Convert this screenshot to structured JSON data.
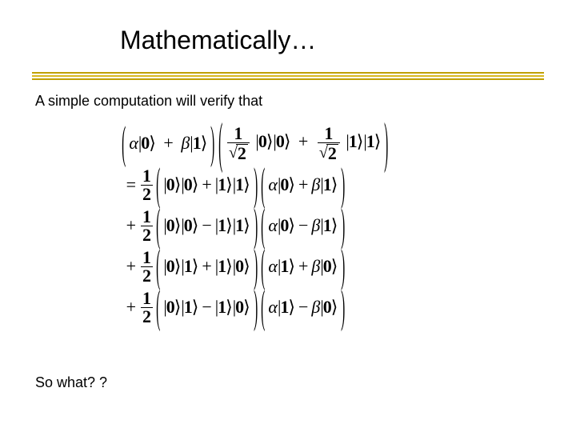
{
  "title": "Mathematically…",
  "intro_text": "A simple computation will verify that",
  "so_what": "So what? ?",
  "rule_colors": [
    "#c0a000",
    "#d8b820",
    "#c0a000"
  ],
  "symbols": {
    "alpha": "α",
    "beta": "β",
    "plus": "+",
    "minus": "−",
    "eq": "=",
    "zero": "0",
    "one": "1",
    "two": "2",
    "half_num": "1",
    "half_den": "2",
    "sqrt2": "2"
  },
  "typography": {
    "title_fontsize_pt": 24,
    "body_fontsize_pt": 14,
    "math_fontsize_pt": 16,
    "math_font": "Times New Roman",
    "body_font": "Arial",
    "text_color": "#000000",
    "bg_color": "#ffffff"
  },
  "math": {
    "line1": {
      "factor1": {
        "terms": [
          {
            "coef": "α",
            "ket": "0"
          },
          {
            "op": "+",
            "coef": "β",
            "ket": "1"
          }
        ]
      },
      "factor2": {
        "terms": [
          {
            "frac_num": "1",
            "frac_den_sqrt": "2",
            "ket": "0",
            "ket2": "0"
          },
          {
            "op": "+",
            "frac_num": "1",
            "frac_den_sqrt": "2",
            "ket": "1",
            "ket2": "1"
          }
        ]
      }
    },
    "rows": [
      {
        "lead": "=",
        "half": true,
        "bell": [
          {
            "k1": "0",
            "k2": "0"
          },
          {
            "op": "+",
            "k1": "1",
            "k2": "1"
          }
        ],
        "coef": [
          {
            "c": "α",
            "k": "0"
          },
          {
            "op": "+",
            "c": "β",
            "k": "1"
          }
        ]
      },
      {
        "lead": "+",
        "half": true,
        "bell": [
          {
            "k1": "0",
            "k2": "0"
          },
          {
            "op": "−",
            "k1": "1",
            "k2": "1"
          }
        ],
        "coef": [
          {
            "c": "α",
            "k": "0"
          },
          {
            "op": "−",
            "c": "β",
            "k": "1"
          }
        ]
      },
      {
        "lead": "+",
        "half": true,
        "bell": [
          {
            "k1": "0",
            "k2": "1"
          },
          {
            "op": "+",
            "k1": "1",
            "k2": "0"
          }
        ],
        "coef": [
          {
            "c": "α",
            "k": "1"
          },
          {
            "op": "+",
            "c": "β",
            "k": "0"
          }
        ]
      },
      {
        "lead": "+",
        "half": true,
        "bell": [
          {
            "k1": "0",
            "k2": "1"
          },
          {
            "op": "−",
            "k1": "1",
            "k2": "0"
          }
        ],
        "coef": [
          {
            "c": "α",
            "k": "1"
          },
          {
            "op": "−",
            "c": "β",
            "k": "0"
          }
        ]
      }
    ]
  }
}
